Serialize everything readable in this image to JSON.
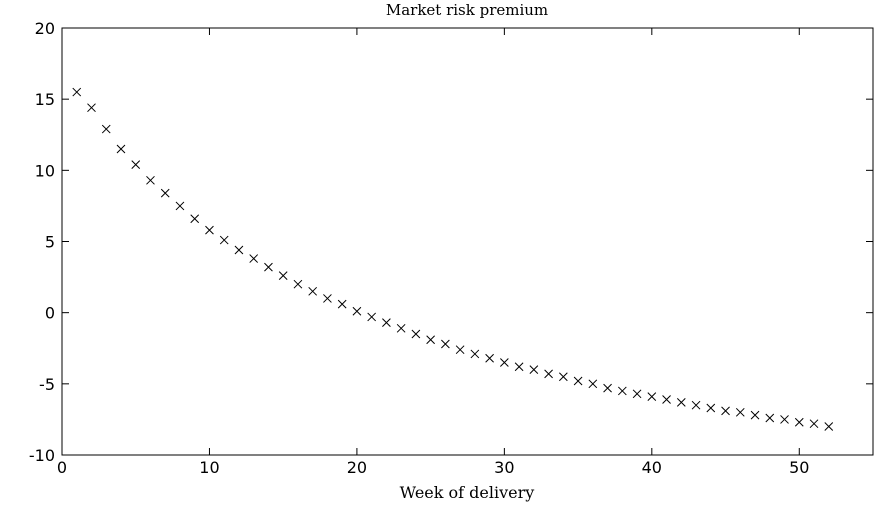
{
  "chart_data": {
    "type": "scatter",
    "title": "Market risk premium",
    "xlabel": "Week of delivery",
    "ylabel": "",
    "xlim": [
      0,
      55
    ],
    "ylim": [
      -10,
      20
    ],
    "xticks": [
      0,
      10,
      20,
      30,
      40,
      50
    ],
    "yticks": [
      -10,
      -5,
      0,
      5,
      10,
      15,
      20
    ],
    "grid": false,
    "marker": "x",
    "series": [
      {
        "x": [
          1,
          2,
          3,
          4,
          5,
          6,
          7,
          8,
          9,
          10,
          11,
          12,
          13,
          14,
          15,
          16,
          17,
          18,
          19,
          20,
          21,
          22,
          23,
          24,
          25,
          26,
          27,
          28,
          29,
          30,
          31,
          32,
          33,
          34,
          35,
          36,
          37,
          38,
          39,
          40,
          41,
          42,
          43,
          44,
          45,
          46,
          47,
          48,
          49,
          50,
          51,
          52
        ],
        "y": [
          15.5,
          14.4,
          12.9,
          11.5,
          10.4,
          9.3,
          8.4,
          7.5,
          6.6,
          5.8,
          5.1,
          4.4,
          3.8,
          3.2,
          2.6,
          2.0,
          1.5,
          1.0,
          0.6,
          0.1,
          -0.3,
          -0.7,
          -1.1,
          -1.5,
          -1.9,
          -2.2,
          -2.6,
          -2.9,
          -3.2,
          -3.5,
          -3.8,
          -4.0,
          -4.3,
          -4.5,
          -4.8,
          -5.0,
          -5.3,
          -5.5,
          -5.7,
          -5.9,
          -6.1,
          -6.3,
          -6.5,
          -6.7,
          -6.9,
          -7.0,
          -7.2,
          -7.4,
          -7.5,
          -7.7,
          -7.8,
          -8.0
        ]
      }
    ]
  }
}
